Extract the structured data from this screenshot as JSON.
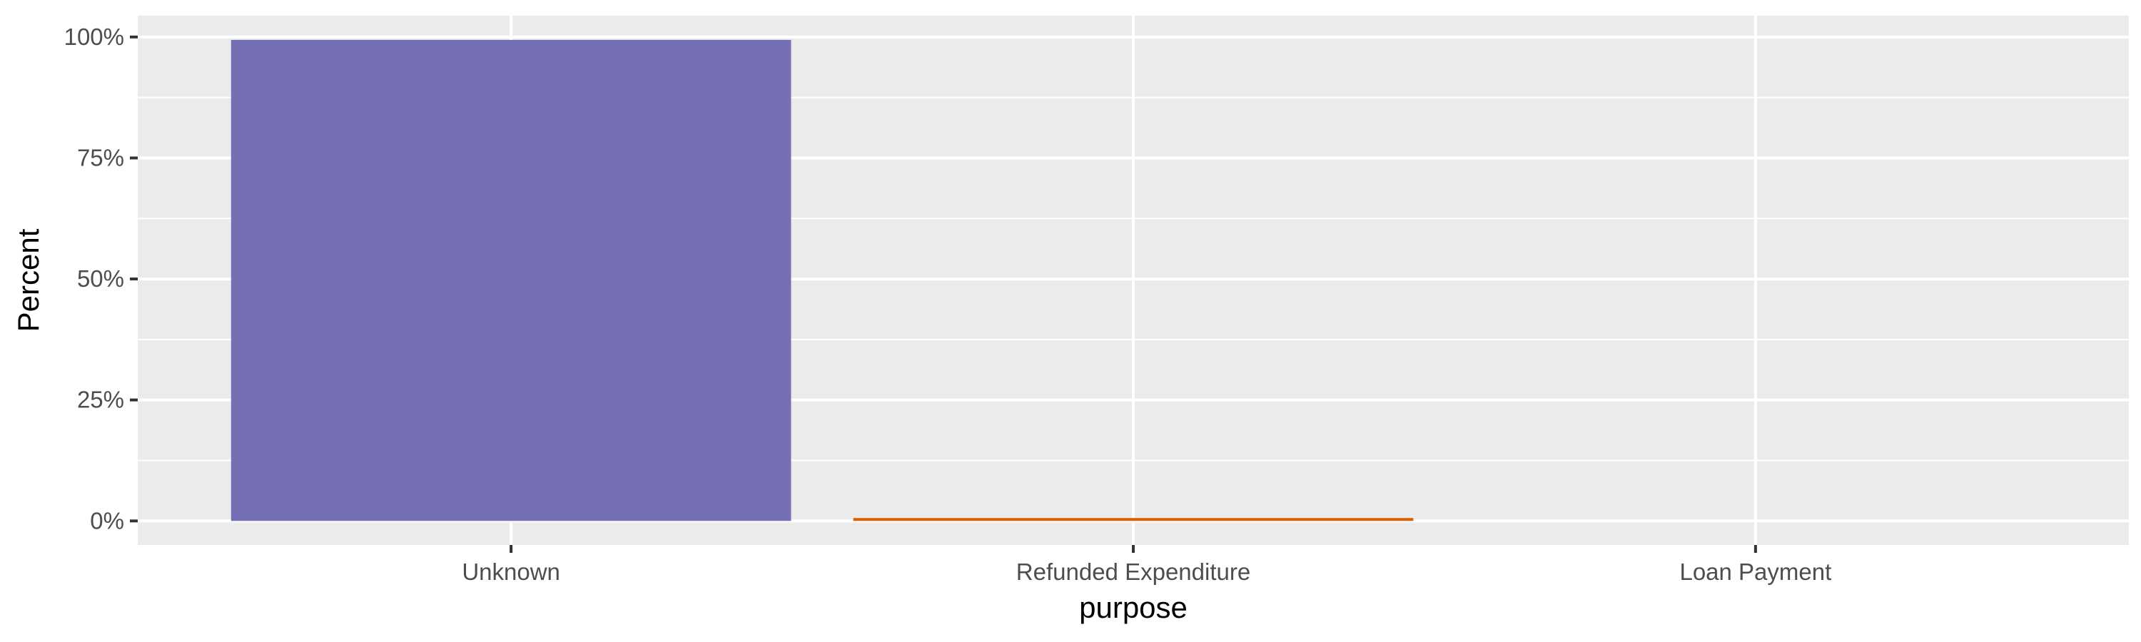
{
  "chart_data": {
    "type": "bar",
    "title": "",
    "xlabel": "purpose",
    "ylabel": "Percent",
    "categories": [
      "Unknown",
      "Refunded Expenditure",
      "Loan Payment"
    ],
    "values": [
      99.4,
      0.6,
      0.0
    ],
    "colors": [
      "#7570b3",
      "#d95f02",
      "#1b9e77"
    ],
    "ylim": [
      0,
      100
    ],
    "ymin_display": -4.97,
    "ymax_display": 104.4,
    "yticks": [
      0,
      25,
      50,
      75,
      100
    ],
    "ytick_labels": [
      "0%",
      "25%",
      "50%",
      "75%",
      "100%"
    ],
    "grid": true,
    "legend": "none",
    "panel_background": "#ebebeb",
    "grid_color": "#ffffff"
  }
}
